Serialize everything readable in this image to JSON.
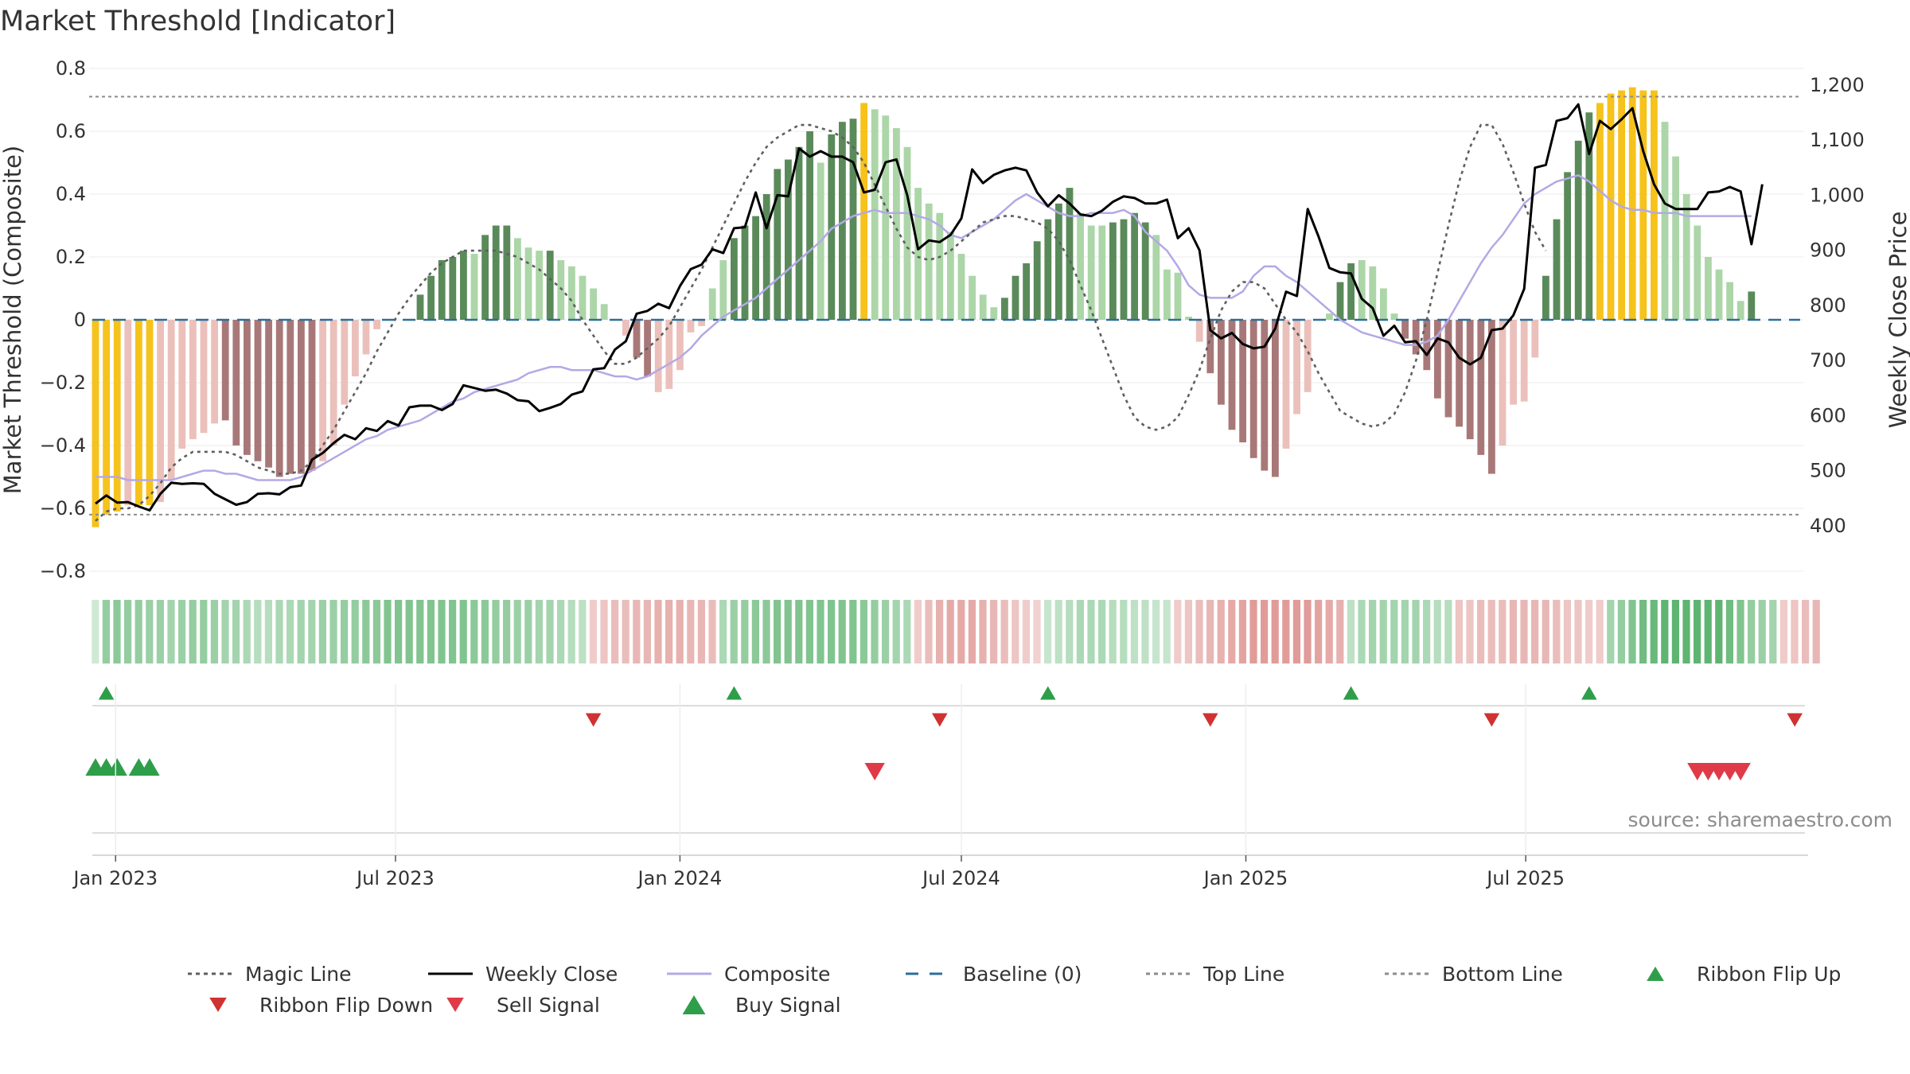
{
  "chart_data": {
    "type": "bar",
    "title": "Market Threshold [Indicator]",
    "ylabel": "Market Threshold (Composite)",
    "y2label": "Weekly Close Price",
    "ylim": [
      -0.8,
      0.8
    ],
    "y2lim": [
      355,
      1210
    ],
    "yticks": [
      "0.8",
      "0.6",
      "0.4",
      "0.2",
      "0",
      "−0.2",
      "−0.4",
      "−0.6",
      "−0.8"
    ],
    "y2ticks": [
      "1,200",
      "1,100",
      "1,000",
      "900",
      "800",
      "700",
      "600",
      "500",
      "400"
    ],
    "xticks": [
      "Jan 2023",
      "Jul 2023",
      "Jan 2024",
      "Jul 2024",
      "Jan 2025",
      "Jul 2025"
    ],
    "x_start": "2022-12-19",
    "x_interval": "weekly",
    "top_line": 0.71,
    "bottom_line": -0.62,
    "composite_bars": [
      -0.66,
      -0.62,
      -0.61,
      -0.59,
      -0.59,
      -0.59,
      -0.58,
      -0.51,
      -0.41,
      -0.38,
      -0.36,
      -0.33,
      -0.32,
      -0.4,
      -0.43,
      -0.45,
      -0.47,
      -0.5,
      -0.49,
      -0.49,
      -0.48,
      -0.45,
      -0.4,
      -0.27,
      -0.18,
      -0.11,
      -0.03,
      0.0,
      0.0,
      0.0,
      0.08,
      0.14,
      0.19,
      0.2,
      0.22,
      0.21,
      0.27,
      0.3,
      0.3,
      0.26,
      0.23,
      0.22,
      0.22,
      0.19,
      0.17,
      0.14,
      0.1,
      0.05,
      0.0,
      -0.05,
      -0.12,
      -0.18,
      -0.23,
      -0.22,
      -0.16,
      -0.04,
      -0.02,
      0.1,
      0.19,
      0.26,
      0.3,
      0.33,
      0.4,
      0.48,
      0.51,
      0.55,
      0.6,
      0.5,
      0.59,
      0.63,
      0.64,
      0.69,
      0.67,
      0.65,
      0.61,
      0.55,
      0.42,
      0.37,
      0.34,
      0.28,
      0.21,
      0.14,
      0.08,
      0.04,
      0.07,
      0.14,
      0.18,
      0.25,
      0.32,
      0.37,
      0.42,
      0.34,
      0.3,
      0.3,
      0.31,
      0.32,
      0.34,
      0.31,
      0.27,
      0.16,
      0.15,
      0.01,
      -0.07,
      -0.17,
      -0.27,
      -0.35,
      -0.39,
      -0.44,
      -0.48,
      -0.5,
      -0.41,
      -0.3,
      -0.23,
      0.0,
      0.02,
      0.12,
      0.18,
      0.19,
      0.17,
      0.1,
      0.02,
      -0.06,
      -0.11,
      -0.16,
      -0.25,
      -0.31,
      -0.34,
      -0.38,
      -0.43,
      -0.49,
      -0.4,
      -0.27,
      -0.26,
      -0.12,
      0.14,
      0.32,
      0.47,
      0.57,
      0.66,
      0.69,
      0.72,
      0.73,
      0.74,
      0.73,
      0.73,
      0.63,
      0.52,
      0.4,
      0.3,
      0.2,
      0.16,
      0.12,
      0.06,
      0.09
    ],
    "bar_color_class": [
      "Y",
      "Y",
      "Y",
      "L",
      "Y",
      "Y",
      "L",
      "L",
      "L",
      "L",
      "L",
      "L",
      "D",
      "D",
      "D",
      "D",
      "D",
      "D",
      "D",
      "D",
      "D",
      "L",
      "L",
      "L",
      "L",
      "L",
      "L",
      "L",
      "L",
      "L",
      "D",
      "D",
      "D",
      "D",
      "D",
      "L",
      "D",
      "D",
      "D",
      "L",
      "L",
      "L",
      "D",
      "L",
      "L",
      "L",
      "L",
      "L",
      "L",
      "L",
      "D",
      "D",
      "L",
      "L",
      "L",
      "L",
      "L",
      "L",
      "L",
      "D",
      "D",
      "D",
      "D",
      "D",
      "D",
      "D",
      "D",
      "L",
      "D",
      "D",
      "D",
      "Y",
      "L",
      "L",
      "L",
      "L",
      "L",
      "L",
      "L",
      "L",
      "L",
      "L",
      "L",
      "L",
      "D",
      "D",
      "D",
      "D",
      "D",
      "D",
      "D",
      "L",
      "L",
      "L",
      "D",
      "D",
      "D",
      "D",
      "L",
      "L",
      "L",
      "L",
      "L",
      "D",
      "D",
      "D",
      "D",
      "D",
      "D",
      "D",
      "L",
      "L",
      "L",
      "L",
      "L",
      "D",
      "D",
      "L",
      "L",
      "L",
      "L",
      "D",
      "D",
      "D",
      "D",
      "D",
      "D",
      "D",
      "D",
      "D",
      "L",
      "L",
      "L",
      "L",
      "D",
      "D",
      "D",
      "D",
      "D",
      "Y",
      "Y",
      "Y",
      "Y",
      "Y",
      "Y",
      "L",
      "L",
      "L",
      "L",
      "L",
      "L",
      "L",
      "L",
      "D"
    ],
    "weekly_close": [
      440,
      455,
      442,
      443,
      435,
      428,
      458,
      478,
      476,
      477,
      476,
      458,
      448,
      438,
      443,
      458,
      459,
      457,
      470,
      473,
      520,
      532,
      550,
      565,
      557,
      577,
      572,
      590,
      582,
      615,
      618,
      618,
      610,
      621,
      655,
      650,
      645,
      647,
      640,
      628,
      626,
      608,
      614,
      621,
      638,
      644,
      684,
      686,
      720,
      735,
      785,
      790,
      803,
      795,
      835,
      866,
      874,
      902,
      895,
      940,
      942,
      1005,
      940,
      1000,
      998,
      1085,
      1070,
      1080,
      1070,
      1070,
      1060,
      1005,
      1010,
      1060,
      1065,
      1000,
      902,
      918,
      915,
      928,
      958,
      1047,
      1022,
      1037,
      1045,
      1050,
      1045,
      1005,
      980,
      1000,
      985,
      965,
      962,
      972,
      988,
      998,
      995,
      985,
      985,
      992,
      922,
      940,
      900,
      755,
      740,
      750,
      730,
      722,
      725,
      758,
      825,
      817,
      975,
      925,
      868,
      860,
      858,
      812,
      795,
      745,
      763,
      733,
      735,
      710,
      740,
      733,
      705,
      693,
      705,
      755,
      758,
      782,
      830,
      1050,
      1055,
      1135,
      1140,
      1165,
      1075,
      1135,
      1120,
      1138,
      1158,
      1080,
      1020,
      985,
      975,
      975,
      975,
      1005,
      1007,
      1015,
      1007,
      911,
      1020
    ],
    "composite_line": [
      -0.5,
      -0.5,
      -0.5,
      -0.51,
      -0.51,
      -0.51,
      -0.51,
      -0.51,
      -0.5,
      -0.49,
      -0.48,
      -0.48,
      -0.49,
      -0.49,
      -0.5,
      -0.51,
      -0.51,
      -0.51,
      -0.51,
      -0.5,
      -0.48,
      -0.46,
      -0.44,
      -0.42,
      -0.4,
      -0.38,
      -0.37,
      -0.35,
      -0.34,
      -0.33,
      -0.32,
      -0.3,
      -0.28,
      -0.26,
      -0.25,
      -0.23,
      -0.22,
      -0.21,
      -0.2,
      -0.19,
      -0.17,
      -0.16,
      -0.15,
      -0.15,
      -0.16,
      -0.16,
      -0.16,
      -0.17,
      -0.18,
      -0.18,
      -0.19,
      -0.18,
      -0.16,
      -0.14,
      -0.12,
      -0.09,
      -0.05,
      -0.02,
      0.01,
      0.03,
      0.05,
      0.07,
      0.1,
      0.13,
      0.16,
      0.19,
      0.22,
      0.25,
      0.29,
      0.31,
      0.33,
      0.34,
      0.35,
      0.34,
      0.34,
      0.34,
      0.33,
      0.32,
      0.3,
      0.27,
      0.26,
      0.28,
      0.3,
      0.32,
      0.35,
      0.38,
      0.4,
      0.38,
      0.36,
      0.34,
      0.33,
      0.33,
      0.34,
      0.34,
      0.34,
      0.35,
      0.33,
      0.28,
      0.25,
      0.22,
      0.17,
      0.11,
      0.08,
      0.07,
      0.07,
      0.07,
      0.09,
      0.14,
      0.17,
      0.17,
      0.14,
      0.12,
      0.09,
      0.06,
      0.03,
      0.0,
      -0.02,
      -0.04,
      -0.05,
      -0.06,
      -0.07,
      -0.08,
      -0.08,
      -0.07,
      -0.05,
      0.0,
      0.06,
      0.12,
      0.18,
      0.23,
      0.27,
      0.32,
      0.37,
      0.4,
      0.42,
      0.44,
      0.45,
      0.46,
      0.44,
      0.41,
      0.38,
      0.36,
      0.35,
      0.35,
      0.34,
      0.34,
      0.34,
      0.33,
      0.33,
      0.33,
      0.33,
      0.33,
      0.33,
      0.33
    ],
    "magic_line": [
      -0.64,
      -0.61,
      -0.6,
      -0.6,
      -0.59,
      -0.56,
      -0.52,
      -0.47,
      -0.44,
      -0.42,
      -0.42,
      -0.42,
      -0.42,
      -0.43,
      -0.45,
      -0.47,
      -0.48,
      -0.49,
      -0.49,
      -0.48,
      -0.45,
      -0.4,
      -0.35,
      -0.29,
      -0.23,
      -0.17,
      -0.1,
      -0.04,
      0.02,
      0.07,
      0.11,
      0.15,
      0.18,
      0.2,
      0.22,
      0.22,
      0.22,
      0.22,
      0.21,
      0.2,
      0.18,
      0.16,
      0.13,
      0.1,
      0.06,
      0.0,
      -0.05,
      -0.1,
      -0.14,
      -0.14,
      -0.12,
      -0.09,
      -0.06,
      -0.02,
      0.04,
      0.1,
      0.16,
      0.23,
      0.3,
      0.37,
      0.44,
      0.5,
      0.55,
      0.58,
      0.6,
      0.62,
      0.62,
      0.61,
      0.6,
      0.58,
      0.55,
      0.5,
      0.43,
      0.36,
      0.29,
      0.23,
      0.2,
      0.19,
      0.2,
      0.22,
      0.25,
      0.28,
      0.31,
      0.32,
      0.33,
      0.33,
      0.32,
      0.31,
      0.29,
      0.25,
      0.19,
      0.11,
      0.03,
      -0.06,
      -0.15,
      -0.24,
      -0.31,
      -0.34,
      -0.35,
      -0.34,
      -0.31,
      -0.24,
      -0.16,
      -0.06,
      0.03,
      0.09,
      0.12,
      0.12,
      0.1,
      0.05,
      0.0,
      -0.04,
      -0.1,
      -0.17,
      -0.23,
      -0.29,
      -0.31,
      -0.33,
      -0.34,
      -0.33,
      -0.3,
      -0.23,
      -0.13,
      0.0,
      0.15,
      0.3,
      0.44,
      0.55,
      0.62,
      0.62,
      0.56,
      0.47,
      0.37,
      0.28,
      0.22
    ],
    "ribbon_strength": [
      0.1,
      0.45,
      0.5,
      0.45,
      0.45,
      0.4,
      0.4,
      0.35,
      0.4,
      0.45,
      0.45,
      0.4,
      0.35,
      0.35,
      0.3,
      0.25,
      0.25,
      0.3,
      0.3,
      0.35,
      0.35,
      0.4,
      0.4,
      0.45,
      0.45,
      0.5,
      0.5,
      0.55,
      0.55,
      0.55,
      0.55,
      0.55,
      0.55,
      0.55,
      0.55,
      0.5,
      0.5,
      0.45,
      0.45,
      0.4,
      0.4,
      0.35,
      0.35,
      0.3,
      0.25,
      0.2,
      -0.2,
      -0.25,
      -0.3,
      -0.3,
      -0.35,
      -0.35,
      -0.4,
      -0.4,
      -0.4,
      -0.35,
      -0.35,
      -0.3,
      0.3,
      0.4,
      0.45,
      0.5,
      0.5,
      0.55,
      0.55,
      0.55,
      0.55,
      0.55,
      0.55,
      0.55,
      0.55,
      0.5,
      0.45,
      0.4,
      0.35,
      0.3,
      -0.2,
      -0.3,
      -0.4,
      -0.45,
      -0.45,
      -0.45,
      -0.4,
      -0.35,
      -0.3,
      -0.25,
      -0.2,
      -0.15,
      0.15,
      0.2,
      0.25,
      0.3,
      0.3,
      0.3,
      0.25,
      0.25,
      0.2,
      0.2,
      0.15,
      0.15,
      -0.2,
      -0.25,
      -0.3,
      -0.35,
      -0.4,
      -0.45,
      -0.5,
      -0.55,
      -0.55,
      -0.55,
      -0.55,
      -0.55,
      -0.55,
      -0.5,
      -0.45,
      -0.4,
      0.2,
      0.3,
      0.35,
      0.35,
      0.35,
      0.35,
      0.35,
      0.3,
      0.25,
      0.25,
      -0.25,
      -0.25,
      -0.3,
      -0.3,
      -0.3,
      -0.35,
      -0.35,
      -0.35,
      -0.35,
      -0.3,
      -0.25,
      -0.25,
      -0.2,
      -0.2,
      0.35,
      0.45,
      0.55,
      0.65,
      0.7,
      0.75,
      0.75,
      0.75,
      0.75,
      0.75,
      0.75,
      0.65,
      0.55,
      0.45,
      0.4,
      0.35,
      -0.2,
      -0.25,
      -0.3,
      -0.35
    ],
    "ribbon_flip_up_weeks": [
      1,
      59,
      88,
      116,
      138
    ],
    "ribbon_flip_down_weeks": [
      46,
      78,
      103,
      129,
      157
    ],
    "sell_signal_weeks": [
      72,
      148,
      149,
      150,
      151,
      152
    ],
    "buy_signal_weeks": [
      0,
      1,
      2,
      4,
      5
    ],
    "legend": [
      {
        "label": "Magic Line",
        "style": "dotted",
        "color": "#5f5f5f"
      },
      {
        "label": "Weekly Close",
        "style": "solid",
        "color": "#000000"
      },
      {
        "label": "Composite",
        "style": "solid",
        "color": "#b4a8e6"
      },
      {
        "label": "Baseline (0)",
        "style": "dashed",
        "color": "#2b6f9a"
      },
      {
        "label": "Top Line",
        "style": "dotted",
        "color": "#8c8c8c"
      },
      {
        "label": "Bottom Line",
        "style": "dotted",
        "color": "#8c8c8c"
      },
      {
        "label": "Ribbon Flip Up",
        "style": "triangle-up",
        "color": "#2e9e4a"
      },
      {
        "label": "Ribbon Flip Down",
        "style": "triangle-down",
        "color": "#cf3232"
      },
      {
        "label": "Sell Signal",
        "style": "triangle-down",
        "color": "#e03a48"
      },
      {
        "label": "Buy Signal",
        "style": "triangle-up",
        "color": "#2e9e4a"
      }
    ],
    "legend_placement": "bottom",
    "grid": true
  },
  "source": "source: sharemaestro.com",
  "colors": {
    "bar_positive_dark": "#5a8a5a",
    "bar_positive_light": "#acd6a8",
    "bar_negative_dark": "#a87878",
    "bar_negative_light": "#ebc0bb",
    "bar_extreme": "#f6c21c",
    "weekly_close": "#000000",
    "composite": "#b4a8e6",
    "magic": "#5f5f5f",
    "baseline": "#2b6f9a",
    "threshold": "#8c8c8c"
  }
}
